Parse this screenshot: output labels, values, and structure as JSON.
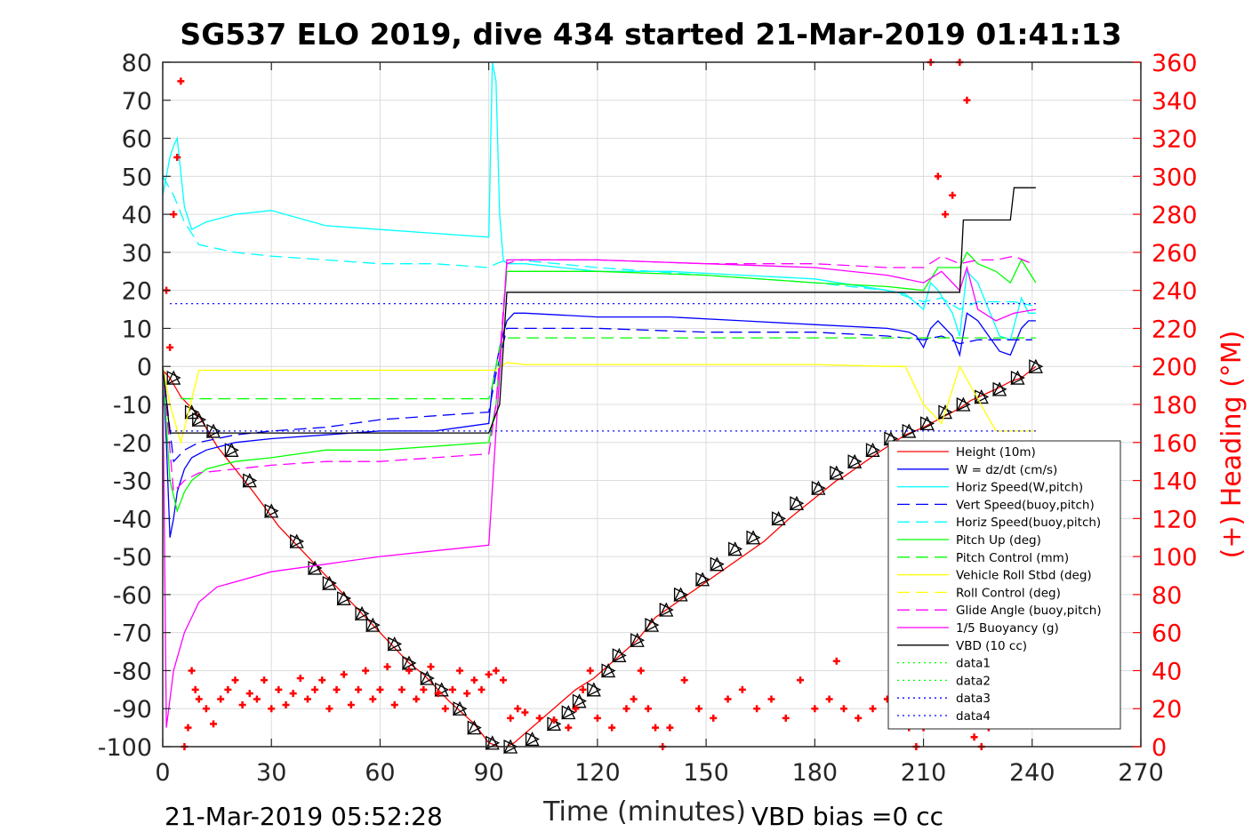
{
  "chart_data": {
    "type": "line",
    "title": "SG537 ELO 2019, dive 434 started 21-Mar-2019 01:41:13",
    "xlabel": "Time (minutes)",
    "ylabel": "",
    "y2label": "(+) Heading (°M)",
    "xlim": [
      0,
      270
    ],
    "ylim": [
      -100,
      80
    ],
    "y2lim": [
      0,
      360
    ],
    "xticks": [
      "0",
      "30",
      "60",
      "90",
      "120",
      "150",
      "180",
      "210",
      "240",
      "270"
    ],
    "yticks": [
      "80",
      "70",
      "60",
      "50",
      "40",
      "30",
      "20",
      "10",
      "0",
      "-10",
      "-20",
      "-30",
      "-40",
      "-50",
      "-60",
      "-70",
      "-80",
      "-90",
      "-100"
    ],
    "y2ticks": [
      "360",
      "340",
      "320",
      "300",
      "280",
      "260",
      "240",
      "220",
      "200",
      "180",
      "160",
      "140",
      "120",
      "100",
      "80",
      "60",
      "40",
      "20",
      "0"
    ],
    "grid": true,
    "legend_position": "bottom-right",
    "footer_left": "21-Mar-2019 05:52:28",
    "footer_right": "VBD bias =0 cc",
    "legend": [
      {
        "name": "Height (10m)",
        "color": "#ff0000",
        "dash": "solid"
      },
      {
        "name": "W = dz/dt (cm/s)",
        "color": "#0000ff",
        "dash": "solid"
      },
      {
        "name": "Horiz Speed(W,pitch)",
        "color": "#00ffff",
        "dash": "solid"
      },
      {
        "name": "Vert Speed(buoy,pitch)",
        "color": "#0000ff",
        "dash": "dash"
      },
      {
        "name": "Horiz Speed(buoy,pitch)",
        "color": "#00ffff",
        "dash": "dash"
      },
      {
        "name": "Pitch Up (deg)",
        "color": "#00ff00",
        "dash": "solid"
      },
      {
        "name": "Pitch Control (mm)",
        "color": "#00ff00",
        "dash": "dash"
      },
      {
        "name": "Vehicle Roll Stbd (deg)",
        "color": "#ffff00",
        "dash": "solid"
      },
      {
        "name": "Roll Control (deg)",
        "color": "#ffff00",
        "dash": "dash"
      },
      {
        "name": "Glide Angle (buoy,pitch)",
        "color": "#ff00ff",
        "dash": "dash"
      },
      {
        "name": "1/5 Buoyancy (g)",
        "color": "#ff00ff",
        "dash": "solid"
      },
      {
        "name": "VBD (10 cc)",
        "color": "#000000",
        "dash": "solid"
      },
      {
        "name": "data1",
        "color": "#00ff00",
        "dash": "dot"
      },
      {
        "name": "data2",
        "color": "#00ff00",
        "dash": "dot"
      },
      {
        "name": "data3",
        "color": "#0000ff",
        "dash": "dot"
      },
      {
        "name": "data4",
        "color": "#0000ff",
        "dash": "dot"
      }
    ],
    "series": [
      {
        "name": "Height (10m)",
        "axis": "left",
        "color": "#ff0000",
        "dash": "solid",
        "x": [
          0,
          2,
          5,
          10,
          15,
          25,
          32,
          43,
          50,
          57,
          61,
          68,
          72,
          79,
          86,
          90,
          93,
          95,
          97,
          114,
          119,
          131,
          136,
          145,
          148,
          166,
          173,
          186,
          188,
          197,
          205,
          210,
          214,
          220,
          223,
          230,
          234,
          237,
          241
        ],
        "y": [
          -1,
          -3,
          -8,
          -13,
          -21,
          -33,
          -42,
          -53,
          -60,
          -67,
          -71,
          -78,
          -81,
          -88,
          -94,
          -99,
          -100,
          -100,
          -99,
          -85,
          -82,
          -72,
          -66,
          -60,
          -58,
          -46,
          -40,
          -30,
          -29,
          -23,
          -18,
          -16,
          -14,
          -11,
          -9,
          -6,
          -4,
          -3,
          0
        ]
      },
      {
        "name": "Profile markers",
        "axis": "left",
        "color": "#000000",
        "marker": "triangle",
        "x": [
          3,
          8,
          10,
          14,
          19,
          24,
          30,
          37,
          42,
          46,
          50,
          55,
          58,
          64,
          68,
          73,
          77,
          82,
          86,
          91,
          96,
          102,
          108,
          112,
          115,
          119,
          123,
          126,
          131,
          135,
          139,
          143,
          149,
          153,
          158,
          163,
          170,
          175,
          181,
          186,
          191,
          196,
          201,
          206,
          211,
          216,
          221,
          226,
          231,
          236,
          241
        ],
        "y": [
          -3,
          -12,
          -14,
          -17,
          -22,
          -30,
          -38,
          -46,
          -53,
          -57,
          -61,
          -65,
          -68,
          -73,
          -78,
          -82,
          -85,
          -90,
          -95,
          -99,
          -100,
          -98,
          -94,
          -91,
          -88,
          -85,
          -80,
          -76,
          -72,
          -68,
          -64,
          -60,
          -56,
          -52,
          -48,
          -45,
          -40,
          -36,
          -32,
          -28,
          -25,
          -22,
          -19,
          -17,
          -15,
          -12,
          -10,
          -8,
          -6,
          -3,
          0
        ]
      },
      {
        "name": "W = dz/dt (cm/s)",
        "axis": "left",
        "color": "#0000ff",
        "dash": "solid",
        "x": [
          0,
          1,
          2,
          3,
          4,
          6,
          8,
          12,
          20,
          30,
          45,
          60,
          75,
          90,
          91,
          93,
          95,
          97,
          100,
          120,
          140,
          160,
          180,
          200,
          206,
          208,
          210,
          212,
          214,
          218,
          220,
          222,
          225,
          228,
          231,
          234,
          237,
          239,
          241
        ],
        "y": [
          0,
          -20,
          -45,
          -40,
          -33,
          -27,
          -24,
          -22,
          -20,
          -19,
          -18,
          -17,
          -17,
          -15,
          -5,
          5,
          12,
          14,
          14,
          13,
          13,
          12,
          11,
          10,
          9,
          8,
          5,
          10,
          12,
          8,
          3,
          14,
          12,
          8,
          4,
          3,
          10,
          12,
          12
        ]
      },
      {
        "name": "Horiz Speed(W,pitch)",
        "axis": "left",
        "color": "#00ffff",
        "dash": "solid",
        "x": [
          0,
          1,
          2,
          3,
          4,
          6,
          8,
          12,
          20,
          30,
          45,
          60,
          75,
          90,
          91,
          92,
          93,
          94,
          95,
          97,
          100,
          120,
          140,
          160,
          180,
          200,
          205,
          210,
          212,
          214,
          218,
          220,
          222,
          225,
          228,
          231,
          234,
          237,
          239,
          241
        ],
        "y": [
          45,
          50,
          55,
          58,
          60,
          42,
          36,
          38,
          40,
          41,
          37,
          36,
          35,
          34,
          80,
          75,
          40,
          28,
          27,
          27,
          27,
          25,
          25,
          24,
          23,
          20,
          19,
          15,
          22,
          20,
          14,
          8,
          25,
          22,
          15,
          8,
          7,
          18,
          14,
          14
        ]
      },
      {
        "name": "Vert Speed(buoy,pitch)",
        "axis": "left",
        "color": "#0000ff",
        "dash": "dash",
        "x": [
          0,
          3,
          6,
          10,
          20,
          30,
          45,
          60,
          75,
          90,
          92,
          95,
          98,
          120,
          150,
          180,
          200,
          210,
          215,
          220,
          225,
          230,
          235,
          240
        ],
        "y": [
          0,
          -25,
          -22,
          -20,
          -18,
          -17,
          -16,
          -14,
          -13,
          -12,
          -2,
          10,
          10,
          10,
          9,
          9,
          8,
          7,
          8,
          6,
          7,
          7,
          7,
          7
        ]
      },
      {
        "name": "Horiz Speed(buoy,pitch)",
        "axis": "left",
        "color": "#00ffff",
        "dash": "dash",
        "x": [
          0,
          3,
          6,
          10,
          20,
          30,
          45,
          60,
          75,
          90,
          92,
          95,
          98,
          120,
          150,
          180,
          200,
          210,
          215,
          220,
          225,
          230,
          235,
          240
        ],
        "y": [
          50,
          45,
          38,
          32,
          30,
          29,
          28,
          27,
          27,
          26,
          27,
          28,
          28,
          26,
          24,
          22,
          20,
          17,
          18,
          15,
          17,
          17,
          17,
          16
        ]
      },
      {
        "name": "Pitch Up (deg)",
        "axis": "left",
        "color": "#00ff00",
        "dash": "solid",
        "x": [
          0,
          2,
          4,
          6,
          8,
          12,
          20,
          30,
          45,
          60,
          75,
          90,
          92,
          95,
          98,
          120,
          150,
          180,
          200,
          210,
          214,
          220,
          222,
          225,
          230,
          234,
          237,
          241
        ],
        "y": [
          0,
          -30,
          -38,
          -33,
          -30,
          -27,
          -25,
          -24,
          -22,
          -22,
          -21,
          -20,
          -10,
          25,
          25,
          25,
          24,
          22,
          21,
          20,
          26,
          26,
          30,
          27,
          25,
          22,
          28,
          22
        ]
      },
      {
        "name": "Pitch Control (mm)",
        "axis": "left",
        "color": "#00ff00",
        "dash": "dash",
        "x": [
          5,
          90,
          91,
          93,
          95,
          241
        ],
        "y": [
          -8.5,
          -8.5,
          -5,
          5,
          7.5,
          7.5
        ]
      },
      {
        "name": "Vehicle Roll Stbd (deg)",
        "axis": "left",
        "color": "#ffff00",
        "dash": "solid",
        "x": [
          0,
          2,
          5,
          10,
          20,
          30,
          40,
          50,
          60,
          70,
          80,
          90,
          92,
          95,
          100,
          120,
          140,
          160,
          180,
          200,
          205,
          210,
          215,
          220,
          230,
          241
        ],
        "y": [
          0,
          -10,
          -20,
          -1,
          -1,
          -1,
          -1,
          -1,
          -1,
          -1,
          -1,
          -1,
          -1,
          1,
          0.5,
          0.5,
          0.5,
          0.5,
          0.5,
          0,
          0,
          -10,
          -15,
          0,
          -17,
          -17
        ]
      },
      {
        "name": "Glide Angle (buoy,pitch)",
        "axis": "left",
        "color": "#ff00ff",
        "dash": "dash",
        "x": [
          0,
          3,
          6,
          10,
          20,
          30,
          45,
          60,
          75,
          90,
          92,
          95,
          98,
          120,
          150,
          180,
          200,
          210,
          215,
          220,
          225,
          230,
          235,
          240
        ],
        "y": [
          0,
          -33,
          -30,
          -28,
          -27,
          -26,
          -25,
          -25,
          -24,
          -23,
          -10,
          27,
          28,
          28,
          27,
          27,
          26,
          26,
          29,
          27,
          28,
          28,
          29,
          27
        ]
      },
      {
        "name": "1/5 Buoyancy (g)",
        "axis": "left",
        "color": "#ff00ff",
        "dash": "solid",
        "x": [
          0,
          1,
          3,
          6,
          10,
          15,
          30,
          45,
          60,
          75,
          90,
          95,
          100,
          120,
          150,
          180,
          200,
          210,
          215,
          220,
          222,
          225,
          230,
          235,
          241
        ],
        "y": [
          0,
          -95,
          -80,
          -70,
          -62,
          -58,
          -54,
          -52,
          -50,
          -48.5,
          -47,
          28,
          28,
          28,
          27,
          26,
          24,
          22,
          25,
          20,
          26,
          15,
          12,
          14,
          15
        ]
      },
      {
        "name": "VBD (10 cc)",
        "axis": "left",
        "color": "#000000",
        "dash": "solid",
        "x": [
          0,
          2,
          90,
          93,
          95,
          220,
          221,
          234,
          235,
          241
        ],
        "y": [
          0,
          -17.5,
          -17.5,
          -10,
          19.5,
          19.5,
          38.5,
          38.5,
          47,
          47
        ]
      },
      {
        "name": "data1",
        "axis": "left",
        "color": "#00ff00",
        "dash": "dot",
        "x": [],
        "y": []
      },
      {
        "name": "data2",
        "axis": "left",
        "color": "#00ff00",
        "dash": "dot",
        "x": [],
        "y": []
      },
      {
        "name": "data3",
        "axis": "left",
        "color": "#0000ff",
        "dash": "dot",
        "x": [
          2,
          241
        ],
        "y": [
          16.5,
          16.5
        ]
      },
      {
        "name": "data4",
        "axis": "left",
        "color": "#0000ff",
        "dash": "dot",
        "x": [
          2,
          241
        ],
        "y": [
          -17,
          -17
        ]
      },
      {
        "name": "(+) Heading (°M)",
        "axis": "right",
        "color": "#ff0000",
        "marker": "plus",
        "x": [
          1,
          2,
          3,
          4,
          5,
          6,
          7,
          8,
          9,
          10,
          12,
          14,
          16,
          18,
          20,
          22,
          24,
          26,
          28,
          30,
          32,
          34,
          36,
          38,
          40,
          42,
          44,
          46,
          48,
          50,
          52,
          54,
          56,
          58,
          60,
          62,
          64,
          66,
          68,
          70,
          72,
          74,
          76,
          78,
          80,
          82,
          84,
          86,
          88,
          90,
          92,
          94,
          96,
          98,
          100,
          104,
          108,
          112,
          114,
          116,
          118,
          120,
          124,
          128,
          130,
          132,
          134,
          136,
          138,
          140,
          144,
          148,
          152,
          156,
          160,
          164,
          168,
          172,
          176,
          180,
          184,
          186,
          188,
          192,
          196,
          200,
          204,
          206,
          208,
          210,
          212,
          214,
          216,
          218,
          220,
          222,
          224,
          226,
          228,
          230,
          232,
          234,
          236,
          238,
          240
        ],
        "y": [
          240,
          210,
          280,
          310,
          350,
          0,
          10,
          40,
          30,
          25,
          20,
          12,
          25,
          30,
          35,
          22,
          28,
          25,
          35,
          20,
          30,
          22,
          28,
          36,
          25,
          30,
          35,
          20,
          30,
          38,
          22,
          30,
          40,
          25,
          30,
          42,
          22,
          30,
          40,
          25,
          30,
          42,
          28,
          20,
          30,
          40,
          28,
          35,
          30,
          38,
          40,
          35,
          15,
          20,
          18,
          15,
          14,
          10,
          20,
          30,
          40,
          15,
          10,
          20,
          25,
          40,
          20,
          10,
          0,
          10,
          35,
          20,
          15,
          25,
          30,
          20,
          25,
          15,
          35,
          20,
          25,
          45,
          20,
          15,
          20,
          25,
          20,
          10,
          0,
          10,
          360,
          300,
          280,
          290,
          360,
          340,
          5,
          0,
          10,
          30,
          45,
          20,
          20,
          15,
          20
        ]
      }
    ]
  }
}
